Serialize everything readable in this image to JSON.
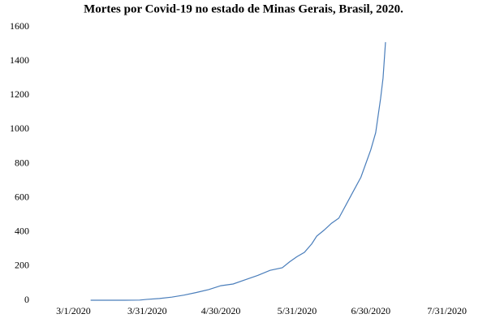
{
  "chart_data": {
    "type": "line",
    "title": "Mortes por Covid-19 no estado de Minas Gerais, Brasil, 2020.",
    "x": [
      "3/8/2020",
      "3/15/2020",
      "3/22/2020",
      "3/28/2020",
      "3/31/2020",
      "4/5/2020",
      "4/10/2020",
      "4/15/2020",
      "4/20/2020",
      "4/25/2020",
      "4/30/2020",
      "5/5/2020",
      "5/10/2020",
      "5/15/2020",
      "5/20/2020",
      "5/25/2020",
      "5/28/2020",
      "5/31/2020",
      "6/3/2020",
      "6/6/2020",
      "6/8/2020",
      "6/11/2020",
      "6/14/2020",
      "6/17/2020",
      "6/20/2020",
      "6/23/2020",
      "6/26/2020",
      "6/28/2020",
      "6/30/2020",
      "7/2/2020",
      "7/4/2020",
      "7/5/2020",
      "7/6/2020"
    ],
    "series": [
      {
        "name": "Mortes",
        "color": "#4a7ebb",
        "values": [
          0,
          0,
          0,
          1,
          5,
          10,
          18,
          30,
          45,
          62,
          85,
          95,
          120,
          145,
          175,
          190,
          225,
          255,
          280,
          330,
          375,
          410,
          450,
          480,
          560,
          640,
          720,
          800,
          880,
          980,
          1180,
          1300,
          1510
        ]
      }
    ],
    "xlim": [
      "2/13/2020",
      "8/13/2020"
    ],
    "xticks": [
      "3/1/2020",
      "3/31/2020",
      "4/30/2020",
      "5/31/2020",
      "6/30/2020",
      "7/31/2020"
    ],
    "ylim": [
      0,
      1600
    ],
    "yticks": [
      0,
      200,
      400,
      600,
      800,
      1000,
      1200,
      1400,
      1600
    ],
    "grid": false
  }
}
